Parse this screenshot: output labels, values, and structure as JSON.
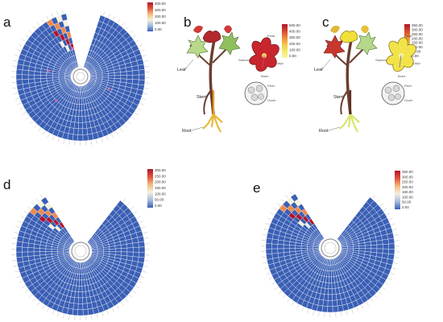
{
  "panels": {
    "a": {
      "letter": "a",
      "legend_ticks": [
        "400.00",
        "300.00",
        "200.00",
        "100.00",
        "0.00"
      ]
    },
    "b": {
      "letter": "b",
      "legend_ticks": [
        "500.00",
        "400.00",
        "300.00",
        "200.00",
        "100.00",
        "0.00"
      ],
      "labels": {
        "leaf": "Leaf",
        "stem": "Stem",
        "root": "Root",
        "fiber": "Fiber",
        "ovule": "Ovule",
        "petal": "Petal",
        "stamen": "Stamen",
        "sepal": "Calyx",
        "bract": "Bract"
      }
    },
    "c": {
      "letter": "c",
      "legend_ticks": [
        "350.00",
        "300.00",
        "250.00",
        "200.00",
        "150.00",
        "100.00",
        "50.00",
        "0.00"
      ],
      "labels": {
        "leaf": "Leaf",
        "stem": "Stem",
        "root": "Root",
        "fiber": "Fiber",
        "ovule": "Ovule",
        "petal": "Petal",
        "stamen": "Stamen",
        "sepal": "Calyx",
        "bract": "Bract"
      }
    },
    "d": {
      "letter": "d",
      "legend_ticks": [
        "300.00",
        "250.00",
        "200.00",
        "150.00",
        "100.00",
        "50.00",
        "0.00"
      ]
    },
    "e": {
      "letter": "e",
      "legend_ticks": [
        "350.00",
        "300.00",
        "250.00",
        "200.00",
        "150.00",
        "100.00",
        "50.00",
        "0.00"
      ]
    }
  },
  "colors": {
    "low": "#3a5fb5",
    "mid": "#f4f1dc",
    "high": "#b1152a",
    "grid": "#ffffff"
  }
}
